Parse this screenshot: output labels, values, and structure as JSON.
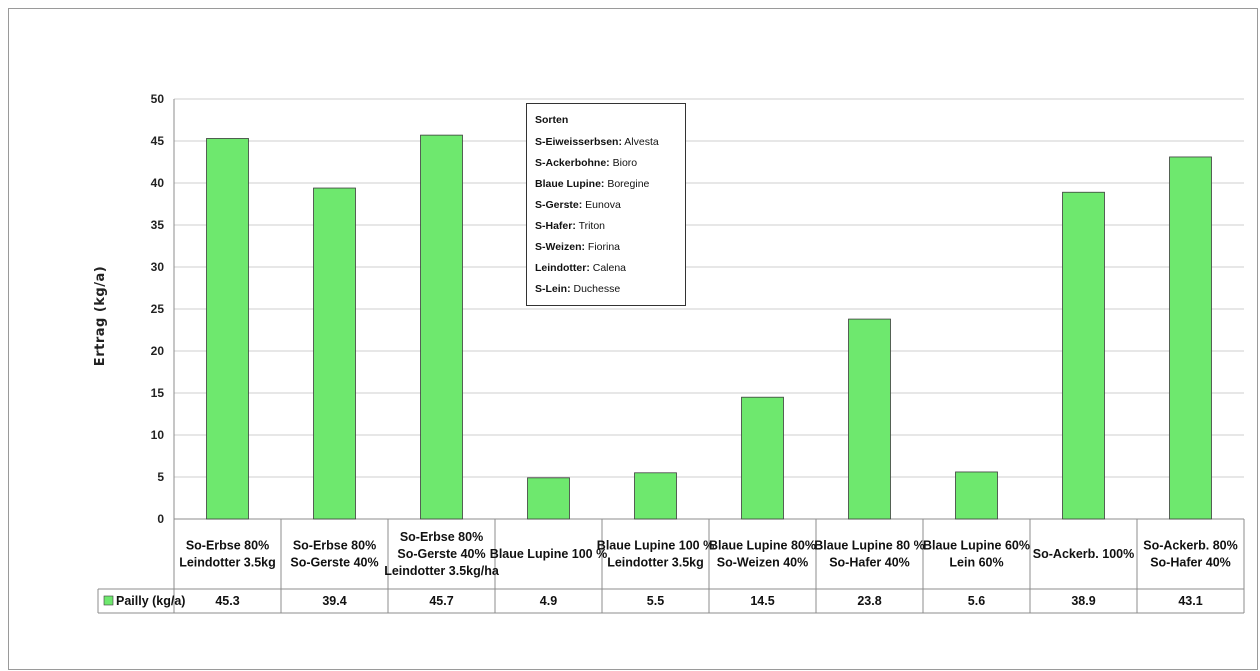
{
  "chart_data": {
    "type": "bar",
    "ylabel": "Ertrag (kg/a)",
    "ylim": [
      0,
      50
    ],
    "yticks": [
      0,
      5,
      10,
      15,
      20,
      25,
      30,
      35,
      40,
      45,
      50
    ],
    "grid": true,
    "bar_color": "#6ee86e",
    "categories": [
      [
        "So-Erbse 80%",
        "Leindotter 3.5kg"
      ],
      [
        "So-Erbse 80%",
        "So-Gerste 40%"
      ],
      [
        "So-Erbse 80%",
        "So-Gerste 40%",
        "Leindotter 3.5kg/ha"
      ],
      [
        "Blaue Lupine 100 %"
      ],
      [
        "Blaue Lupine 100 %",
        "Leindotter 3.5kg"
      ],
      [
        "Blaue Lupine 80%",
        "So-Weizen 40%"
      ],
      [
        "Blaue Lupine 80 %",
        "So-Hafer 40%"
      ],
      [
        "Blaue Lupine 60%",
        "Lein 60%"
      ],
      [
        "So-Ackerb. 100%"
      ],
      [
        "So-Ackerb. 80%",
        "So-Hafer 40%"
      ]
    ],
    "series": [
      {
        "name": "Pailly (kg/a)",
        "values": [
          45.3,
          39.4,
          45.7,
          4.9,
          5.5,
          14.5,
          23.8,
          5.6,
          38.9,
          43.1
        ],
        "value_labels": [
          "45.3",
          "39.4",
          "45.7",
          "4.9",
          "5.5",
          "14.5",
          "23.8",
          "5.6",
          "38.9",
          "43.1"
        ]
      }
    ],
    "data_table": true
  },
  "annotation": {
    "title": "Sorten",
    "rows": [
      {
        "key": "S-Eiweisserbsen:",
        "value": " Alvesta"
      },
      {
        "key": "S-Ackerbohne:",
        "value": " Bioro"
      },
      {
        "key": "Blaue Lupine:",
        "value": " Boregine"
      },
      {
        "key": "S-Gerste:",
        "value": " Eunova"
      },
      {
        "key": "S-Hafer:",
        "value": " Triton"
      },
      {
        "key": "S-Weizen:",
        "value": " Fiorina"
      },
      {
        "key": "Leindotter:",
        "value": " Calena"
      },
      {
        "key": "S-Lein:",
        "value": " Duchesse"
      }
    ]
  }
}
